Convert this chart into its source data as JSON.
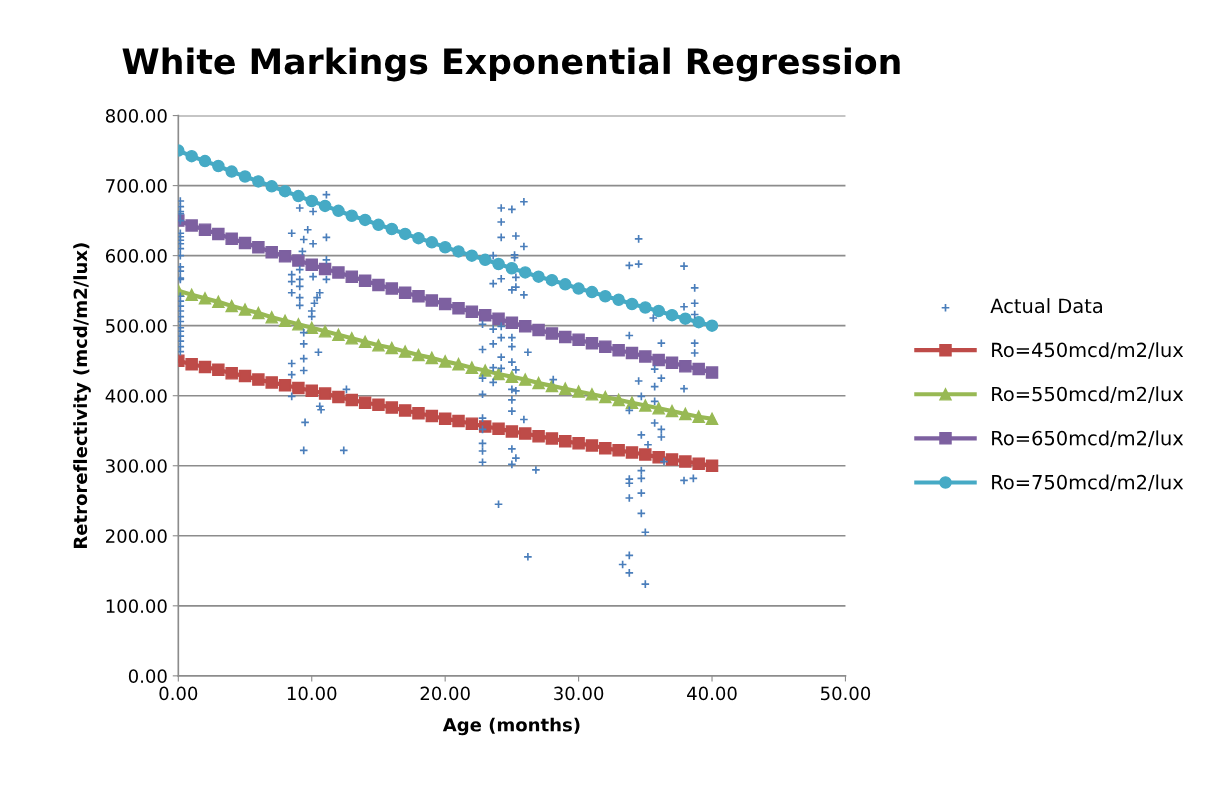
{
  "chart_data": {
    "type": "line",
    "title": "White Markings Exponential Regression",
    "xlabel": "Age (months)",
    "ylabel": "Retroreflectivity (mcd/m2/lux)",
    "xlim": [
      0,
      50
    ],
    "ylim": [
      0,
      800
    ],
    "xticks": [
      {
        "value": 0,
        "label": "0.00"
      },
      {
        "value": 10,
        "label": "10.00"
      },
      {
        "value": 20,
        "label": "20.00"
      },
      {
        "value": 30,
        "label": "30.00"
      },
      {
        "value": 40,
        "label": "40.00"
      },
      {
        "value": 50,
        "label": "50.00"
      }
    ],
    "yticks": [
      {
        "value": 0,
        "label": "0.00"
      },
      {
        "value": 100,
        "label": "100.00"
      },
      {
        "value": 200,
        "label": "200.00"
      },
      {
        "value": 300,
        "label": "300.00"
      },
      {
        "value": 400,
        "label": "400.00"
      },
      {
        "value": 500,
        "label": "500.00"
      },
      {
        "value": 600,
        "label": "600.00"
      },
      {
        "value": 700,
        "label": "700.00"
      },
      {
        "value": 800,
        "label": "800.00"
      }
    ],
    "grid": "y",
    "legend": "right",
    "x": [
      0,
      1,
      2,
      3,
      4,
      5,
      6,
      7,
      8,
      9,
      10,
      11,
      12,
      13,
      14,
      15,
      16,
      17,
      18,
      19,
      20,
      21,
      22,
      23,
      24,
      25,
      26,
      27,
      28,
      29,
      30,
      31,
      32,
      33,
      34,
      35,
      36,
      37,
      38,
      39,
      40
    ],
    "series": [
      {
        "name": "Actual Data",
        "type": "scatter",
        "marker": "cross",
        "color": "#4a7ebb",
        "x": [
          0.15,
          0.15,
          0.15,
          0.15,
          0.15,
          0.15,
          0.15,
          0.15,
          0.15,
          0.15,
          0.15,
          0.15,
          0.15,
          0.15,
          0.15,
          0.15,
          0.15,
          0.15,
          0.15,
          0.15,
          0.15,
          0.15,
          0.15,
          0.15,
          0.15,
          0.15,
          0.15,
          11.1,
          9.1,
          10.1,
          8.5,
          9.7,
          9.4,
          10.1,
          11.1,
          9.3,
          11.1,
          8.5,
          9.1,
          8.5,
          9.1,
          10.1,
          11.1,
          9.1,
          8.5,
          10.6,
          10.4,
          9.1,
          9.1,
          10.2,
          10.0,
          10.0,
          9.4,
          9.4,
          10.5,
          9.4,
          8.5,
          8.5,
          9.4,
          8.5,
          12.6,
          10.6,
          10.7,
          9.5,
          9.4,
          12.4,
          25.9,
          24.2,
          25.0,
          24.2,
          24.2,
          25.3,
          25.9,
          23.6,
          25.2,
          25.2,
          24.2,
          23.6,
          25.3,
          25.0,
          25.3,
          25.9,
          22.8,
          23.6,
          24.2,
          24.2,
          25.0,
          25.0,
          23.6,
          22.8,
          26.2,
          24.2,
          25.0,
          23.6,
          24.2,
          25.3,
          22.8,
          23.6,
          28.1,
          25.0,
          25.3,
          22.8,
          25.0,
          25.0,
          22.8,
          25.9,
          22.8,
          22.8,
          22.8,
          25.0,
          25.3,
          22.8,
          25.0,
          26.8,
          24.0,
          26.2,
          33.8,
          34.5,
          37.9,
          38.7,
          37.9,
          38.7,
          35.6,
          38.7,
          33.8,
          36.2,
          38.7,
          38.7,
          35.7,
          36.2,
          34.5,
          35.7,
          37.9,
          34.7,
          33.8,
          35.7,
          35.7,
          36.2,
          36.2,
          34.7,
          35.2,
          36.4,
          34.7,
          34.7,
          33.8,
          33.8,
          38.6,
          37.9,
          34.7,
          33.8,
          34.7,
          35.0,
          33.8,
          33.3,
          33.8,
          35.0,
          34.5
        ],
        "values": [
          678,
          670,
          663,
          632,
          627,
          622,
          617,
          610,
          584,
          578,
          568,
          566,
          542,
          535,
          528,
          521,
          513,
          506,
          497,
          492,
          485,
          478,
          470,
          463,
          660,
          650,
          600,
          687,
          668,
          663,
          632,
          637,
          623,
          617,
          626,
          606,
          594,
          573,
          580,
          563,
          566,
          570,
          566,
          556,
          547,
          547,
          540,
          540,
          529,
          532,
          521,
          513,
          490,
          474,
          462,
          453,
          446,
          430,
          436,
          399,
          409,
          385,
          380,
          362,
          322,
          322,
          677,
          668,
          666,
          648,
          626,
          628,
          613,
          600,
          601,
          597,
          567,
          560,
          569,
          551,
          555,
          544,
          502,
          495,
          499,
          483,
          483,
          470,
          474,
          466,
          462,
          455,
          448,
          440,
          439,
          437,
          425,
          419,
          423,
          409,
          407,
          402,
          394,
          378,
          368,
          366,
          352,
          332,
          321,
          324,
          311,
          305,
          302,
          294,
          245,
          170,
          586,
          588,
          585,
          554,
          527,
          532,
          511,
          516,
          486,
          475,
          475,
          461,
          438,
          425,
          421,
          413,
          410,
          399,
          379,
          392,
          361,
          352,
          341,
          344,
          330,
          306,
          293,
          282,
          281,
          275,
          282,
          279,
          261,
          254,
          232,
          205,
          172,
          159,
          147,
          131,
          624
        ]
      },
      {
        "name": "Ro=450mcd/m2/lux",
        "marker": "square",
        "color": "#be4b48",
        "values": [
          450,
          445,
          441,
          437,
          432,
          428,
          423,
          419,
          415,
          411,
          407,
          403,
          398,
          394,
          390,
          387,
          383,
          379,
          375,
          371,
          367,
          364,
          360,
          356,
          353,
          349,
          346,
          342,
          339,
          335,
          332,
          329,
          325,
          322,
          319,
          316,
          312,
          309,
          306,
          303,
          300
        ]
      },
      {
        "name": "Ro=550mcd/m2/lux",
        "marker": "triangle",
        "color": "#98b954",
        "values": [
          550,
          544,
          539,
          534,
          528,
          523,
          518,
          512,
          507,
          502,
          497,
          492,
          487,
          482,
          477,
          472,
          468,
          463,
          458,
          454,
          449,
          445,
          440,
          436,
          431,
          427,
          423,
          418,
          414,
          410,
          406,
          402,
          398,
          394,
          390,
          386,
          382,
          378,
          374,
          370,
          367
        ]
      },
      {
        "name": "Ro=650mcd/m2/lux",
        "marker": "square",
        "color": "#7d60a0",
        "values": [
          650,
          643,
          637,
          631,
          624,
          618,
          612,
          605,
          599,
          593,
          587,
          581,
          576,
          570,
          564,
          558,
          553,
          547,
          542,
          536,
          531,
          525,
          520,
          515,
          510,
          504,
          499,
          494,
          489,
          484,
          480,
          475,
          470,
          465,
          461,
          456,
          451,
          447,
          442,
          438,
          433
        ]
      },
      {
        "name": "Ro=750mcd/m2/lux",
        "marker": "circle",
        "color": "#46aac5",
        "values": [
          750,
          742,
          735,
          728,
          720,
          713,
          706,
          699,
          692,
          685,
          678,
          671,
          664,
          657,
          651,
          644,
          638,
          631,
          625,
          619,
          612,
          606,
          600,
          594,
          588,
          582,
          576,
          570,
          565,
          559,
          553,
          548,
          542,
          537,
          531,
          526,
          521,
          515,
          510,
          505,
          500
        ]
      }
    ]
  }
}
